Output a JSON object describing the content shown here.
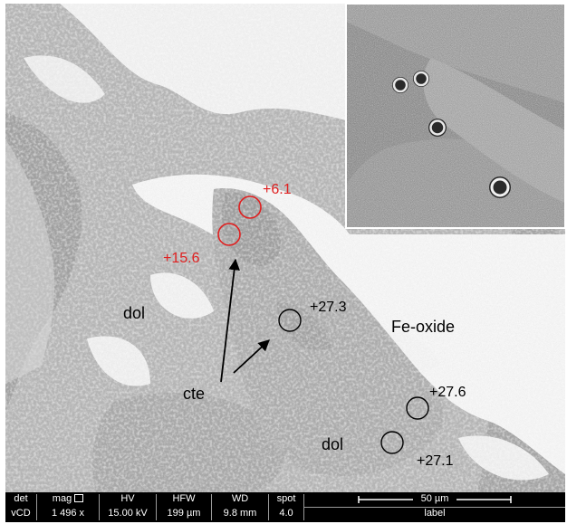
{
  "annotations": {
    "labels": [
      {
        "id": "ann-6-1",
        "text": "+6.1",
        "color": "#e02020"
      },
      {
        "id": "ann-15-6",
        "text": "+15.6",
        "color": "#e02020"
      },
      {
        "id": "ann-27-3",
        "text": "+27.3",
        "color": "#000000"
      },
      {
        "id": "ann-27-6",
        "text": "+27.6",
        "color": "#000000"
      },
      {
        "id": "ann-27-1",
        "text": "+27.1",
        "color": "#000000"
      }
    ],
    "minerals": {
      "dol_upper": "dol",
      "dol_lower": "dol",
      "fe_oxide": "Fe-oxide",
      "cte": "cte"
    }
  },
  "info_bar": {
    "det": {
      "header": "det",
      "value": "vCD"
    },
    "mag": {
      "header": "mag",
      "value": "1 496 x"
    },
    "hv": {
      "header": "HV",
      "value": "15.00 kV"
    },
    "hfw": {
      "header": "HFW",
      "value": "199 µm"
    },
    "wd": {
      "header": "WD",
      "value": "9.8 mm"
    },
    "spot": {
      "header": "spot",
      "value": "4.0"
    },
    "scale_label": "50 µm",
    "label": "label"
  },
  "colors": {
    "matrix_gray": "#b4b4b4",
    "dark_gray": "#8f8f8f",
    "fe_oxide_white": "#fafafa",
    "red_annotation": "#e02020"
  }
}
